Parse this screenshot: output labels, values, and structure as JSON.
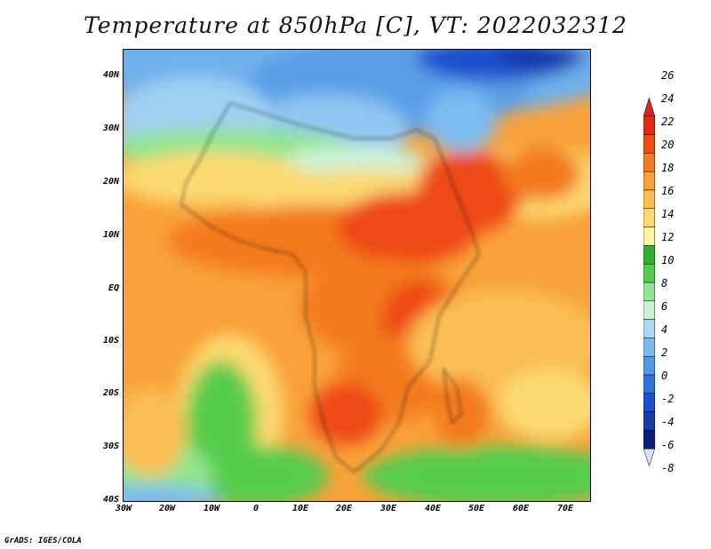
{
  "title": "Temperature at 850hPa [C], VT: 2022032312",
  "credit": "GrADS: IGES/COLA",
  "lat_labels": [
    "40N",
    "30N",
    "20N",
    "10N",
    "EQ",
    "10S",
    "20S",
    "30S",
    "40S"
  ],
  "lon_labels": [
    "30W",
    "20W",
    "10W",
    "0",
    "10E",
    "20E",
    "30E",
    "40E",
    "50E",
    "60E",
    "70E"
  ],
  "colorbar": {
    "labels": [
      "26",
      "24",
      "22",
      "20",
      "18",
      "16",
      "14",
      "12",
      "10",
      "8",
      "6",
      "4",
      "2",
      "0",
      "-2",
      "-4",
      "-6",
      "-8"
    ],
    "colors": [
      "#e02a14",
      "#ee4a12",
      "#f37a1f",
      "#f8a13a",
      "#fbbe53",
      "#fcd971",
      "#fcf3a3",
      "#2fb12f",
      "#56cc4e",
      "#92e48e",
      "#c9f2d6",
      "#a9d8f4",
      "#7bbcf0",
      "#4f9ae6",
      "#2d73db",
      "#1f4fcc",
      "#163aa9",
      "#0b1f7a",
      "#dcdcf7"
    ],
    "top_color": "#d6231f",
    "bottom_color": "#dcdcf7"
  }
}
